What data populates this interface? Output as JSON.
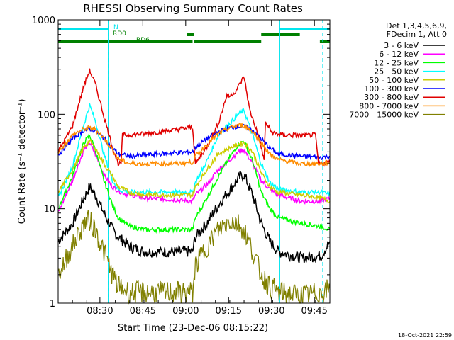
{
  "chart_data": {
    "type": "line",
    "title": "RHESSI Observing Summary Count Rates",
    "xlabel": "Start Time (23-Dec-06 08:15:22)",
    "ylabel": "Count Rate (s⁻¹ detector⁻¹)",
    "yscale": "log",
    "ylim": [
      1,
      1000
    ],
    "xlim_minutes_after_start": [
      0,
      95
    ],
    "x_tick_labels": [
      "08:30",
      "08:45",
      "09:00",
      "09:15",
      "09:30",
      "09:45"
    ],
    "x_tick_minutes": [
      14.6,
      29.6,
      44.6,
      59.6,
      74.6,
      89.6
    ],
    "y_tick_labels": [
      "1",
      "10",
      "100",
      "1000"
    ],
    "y_tick_values": [
      1,
      10,
      100,
      1000
    ],
    "legend_header": [
      "Det 1,3,4,5,6,9,",
      "FDecim 1, Att 0"
    ],
    "legend_position": "right",
    "footer_timestamp": "18-Oct-2021 22:59",
    "flags": [
      {
        "label": "N",
        "color": "#00e5ee",
        "intervals": [
          [
            0,
            17.5
          ],
          [
            77.5,
            95
          ]
        ]
      },
      {
        "label": "RD0",
        "color": "#008000",
        "intervals": [
          [
            45,
            47.5
          ],
          [
            71,
            84.5
          ]
        ]
      },
      {
        "label": "RD6",
        "color": "#008000",
        "intervals": [
          [
            0,
            47
          ],
          [
            47.5,
            71
          ],
          [
            91.5,
            95
          ]
        ]
      }
    ],
    "gap_lines_minutes": [
      17.5,
      77.5
    ],
    "gap_line_dashed_minutes": [
      17.5,
      92.5
    ],
    "series": [
      {
        "name": "3 - 6 keV",
        "color": "#000000",
        "points": [
          [
            0,
            4.5
          ],
          [
            5,
            7
          ],
          [
            9,
            13
          ],
          [
            11,
            17
          ],
          [
            13,
            14
          ],
          [
            16,
            9
          ],
          [
            19,
            6
          ],
          [
            21,
            5
          ],
          [
            25,
            4
          ],
          [
            30,
            3.5
          ],
          [
            40,
            3.5
          ],
          [
            47,
            3.5
          ],
          [
            48,
            5
          ],
          [
            52,
            7
          ],
          [
            56,
            11
          ],
          [
            60,
            16
          ],
          [
            63,
            21
          ],
          [
            65,
            23
          ],
          [
            68,
            14
          ],
          [
            71,
            7
          ],
          [
            74,
            4.5
          ],
          [
            77,
            3.5
          ],
          [
            85,
            3
          ],
          [
            92,
            3.2
          ],
          [
            95,
            4.5
          ]
        ]
      },
      {
        "name": "6 - 12 keV",
        "color": "#ff00ff",
        "points": [
          [
            0,
            9
          ],
          [
            5,
            20
          ],
          [
            9,
            42
          ],
          [
            11,
            50
          ],
          [
            13,
            38
          ],
          [
            16,
            23
          ],
          [
            19,
            17
          ],
          [
            22,
            15
          ],
          [
            25,
            14
          ],
          [
            30,
            13
          ],
          [
            40,
            12.5
          ],
          [
            47,
            12
          ],
          [
            48,
            14
          ],
          [
            52,
            18
          ],
          [
            56,
            26
          ],
          [
            60,
            33
          ],
          [
            63,
            40
          ],
          [
            65,
            42
          ],
          [
            68,
            30
          ],
          [
            71,
            20
          ],
          [
            74,
            16
          ],
          [
            77,
            14
          ],
          [
            85,
            12
          ],
          [
            92,
            12
          ],
          [
            95,
            13
          ]
        ]
      },
      {
        "name": "12 - 25 keV",
        "color": "#00ff00",
        "points": [
          [
            0,
            10
          ],
          [
            5,
            22
          ],
          [
            9,
            50
          ],
          [
            11,
            60
          ],
          [
            13,
            42
          ],
          [
            16,
            20
          ],
          [
            19,
            11
          ],
          [
            21,
            8
          ],
          [
            25,
            6.5
          ],
          [
            30,
            6
          ],
          [
            40,
            6
          ],
          [
            47,
            6
          ],
          [
            48,
            8
          ],
          [
            52,
            13
          ],
          [
            56,
            22
          ],
          [
            60,
            35
          ],
          [
            63,
            48
          ],
          [
            65,
            52
          ],
          [
            68,
            32
          ],
          [
            71,
            15
          ],
          [
            74,
            10
          ],
          [
            77,
            8
          ],
          [
            85,
            7
          ],
          [
            92,
            6.5
          ],
          [
            95,
            6
          ]
        ]
      },
      {
        "name": "25 - 50 keV",
        "color": "#00ffff",
        "points": [
          [
            0,
            13
          ],
          [
            5,
            28
          ],
          [
            9,
            78
          ],
          [
            11,
            125
          ],
          [
            13,
            85
          ],
          [
            16,
            38
          ],
          [
            19,
            20
          ],
          [
            21,
            16
          ],
          [
            25,
            15
          ],
          [
            30,
            15
          ],
          [
            40,
            15
          ],
          [
            47,
            15
          ],
          [
            48,
            19
          ],
          [
            52,
            32
          ],
          [
            56,
            60
          ],
          [
            60,
            80
          ],
          [
            63,
            100
          ],
          [
            65,
            110
          ],
          [
            68,
            60
          ],
          [
            71,
            30
          ],
          [
            74,
            19
          ],
          [
            77,
            16
          ],
          [
            85,
            15
          ],
          [
            92,
            15
          ],
          [
            95,
            14
          ]
        ]
      },
      {
        "name": "50 - 100 keV",
        "color": "#cccc00",
        "points": [
          [
            0,
            15
          ],
          [
            5,
            26
          ],
          [
            9,
            45
          ],
          [
            11,
            52
          ],
          [
            13,
            44
          ],
          [
            16,
            30
          ],
          [
            19,
            22
          ],
          [
            21,
            17
          ],
          [
            25,
            15
          ],
          [
            30,
            14
          ],
          [
            40,
            14
          ],
          [
            47,
            14
          ],
          [
            48,
            17
          ],
          [
            52,
            26
          ],
          [
            56,
            38
          ],
          [
            60,
            44
          ],
          [
            63,
            48
          ],
          [
            65,
            50
          ],
          [
            68,
            40
          ],
          [
            71,
            24
          ],
          [
            74,
            17
          ],
          [
            77,
            15
          ],
          [
            85,
            14
          ],
          [
            92,
            13
          ],
          [
            95,
            12
          ]
        ]
      },
      {
        "name": "100 - 300 keV",
        "color": "#0000ff",
        "points": [
          [
            0,
            37
          ],
          [
            5,
            55
          ],
          [
            9,
            68
          ],
          [
            11,
            70
          ],
          [
            13,
            67
          ],
          [
            16,
            56
          ],
          [
            19,
            44
          ],
          [
            21,
            38
          ],
          [
            25,
            36
          ],
          [
            30,
            37
          ],
          [
            40,
            39
          ],
          [
            47,
            40
          ],
          [
            48,
            45
          ],
          [
            52,
            55
          ],
          [
            56,
            65
          ],
          [
            60,
            72
          ],
          [
            63,
            75
          ],
          [
            65,
            74
          ],
          [
            68,
            68
          ],
          [
            71,
            55
          ],
          [
            74,
            44
          ],
          [
            77,
            38
          ],
          [
            85,
            36
          ],
          [
            92,
            35
          ],
          [
            95,
            36
          ]
        ]
      },
      {
        "name": "300 - 800 keV",
        "color": "#e00000",
        "points": [
          [
            0,
            40
          ],
          [
            5,
            75
          ],
          [
            9,
            200
          ],
          [
            11,
            290
          ],
          [
            13,
            210
          ],
          [
            16,
            95
          ],
          [
            19,
            45
          ],
          [
            21,
            30
          ],
          [
            22,
            30
          ],
          [
            22.5,
            60
          ],
          [
            30,
            62
          ],
          [
            40,
            68
          ],
          [
            47,
            73
          ],
          [
            48,
            30
          ],
          [
            52,
            45
          ],
          [
            56,
            80
          ],
          [
            59,
            160
          ],
          [
            60,
            155
          ],
          [
            62,
            175
          ],
          [
            65,
            250
          ],
          [
            67,
            110
          ],
          [
            70,
            60
          ],
          [
            72,
            33
          ],
          [
            72.5,
            82
          ],
          [
            75,
            63
          ],
          [
            80,
            60
          ],
          [
            90,
            60
          ],
          [
            91,
            30
          ],
          [
            95,
            31
          ]
        ]
      },
      {
        "name": "800 - 7000 keV",
        "color": "#ff8c00",
        "points": [
          [
            0,
            40
          ],
          [
            5,
            60
          ],
          [
            9,
            70
          ],
          [
            11,
            72
          ],
          [
            13,
            69
          ],
          [
            16,
            56
          ],
          [
            19,
            42
          ],
          [
            21,
            34
          ],
          [
            25,
            30
          ],
          [
            30,
            30
          ],
          [
            40,
            30
          ],
          [
            47,
            31
          ],
          [
            48,
            36
          ],
          [
            52,
            48
          ],
          [
            56,
            62
          ],
          [
            60,
            72
          ],
          [
            63,
            77
          ],
          [
            65,
            76
          ],
          [
            68,
            66
          ],
          [
            71,
            50
          ],
          [
            74,
            38
          ],
          [
            77,
            33
          ],
          [
            85,
            30
          ],
          [
            92,
            30
          ],
          [
            95,
            31
          ]
        ]
      },
      {
        "name": "7000 - 15000 keV",
        "color": "#808000",
        "points": [
          [
            0,
            2
          ],
          [
            5,
            4
          ],
          [
            9,
            7
          ],
          [
            11,
            7.5
          ],
          [
            13,
            6
          ],
          [
            16,
            3.5
          ],
          [
            19,
            2
          ],
          [
            21,
            1.5
          ],
          [
            25,
            1.3
          ],
          [
            30,
            1.3
          ],
          [
            40,
            1.3
          ],
          [
            47,
            1.3
          ],
          [
            48,
            2.5
          ],
          [
            52,
            4
          ],
          [
            56,
            6
          ],
          [
            60,
            7.5
          ],
          [
            63,
            7
          ],
          [
            65,
            6
          ],
          [
            68,
            3.5
          ],
          [
            71,
            2
          ],
          [
            74,
            1.5
          ],
          [
            77,
            1.3
          ],
          [
            85,
            1.2
          ],
          [
            92,
            1.3
          ],
          [
            95,
            1.4
          ]
        ]
      }
    ]
  }
}
